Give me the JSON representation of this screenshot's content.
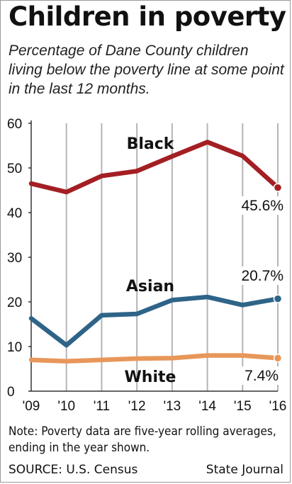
{
  "header": {
    "title": "Children in poverty",
    "subtitle": "Percentage of Dane County children living below the poverty line at some point in the last 12 months."
  },
  "footer": {
    "note": "Note: Poverty data are five-year rolling averages, ending in the year shown.",
    "source": "SOURCE: U.S. Census",
    "credit": "State Journal"
  },
  "colors": {
    "black_series": "#a31f24",
    "asian_series": "#2e6488",
    "white_series": "#e8975a",
    "gridline": "#b5b5b5",
    "axis": "#333333"
  },
  "chart_data": {
    "type": "line",
    "title": "Children in poverty",
    "xlabel": "",
    "ylabel": "",
    "ylim": [
      0,
      60
    ],
    "yticks": [
      0,
      10,
      20,
      30,
      40,
      50,
      60
    ],
    "categories": [
      "'09",
      "'10",
      "'11",
      "'12",
      "'13",
      "'14",
      "'15",
      "'16"
    ],
    "grid": "vertical",
    "legend": "inline labels",
    "series": [
      {
        "name": "Black",
        "color": "#a31f24",
        "values": [
          46.5,
          44.6,
          48.2,
          49.3,
          52.6,
          55.8,
          52.7,
          45.6
        ],
        "end_label": "45.6%"
      },
      {
        "name": "Asian",
        "color": "#2e6488",
        "values": [
          16.3,
          10.3,
          17.0,
          17.3,
          20.4,
          21.1,
          19.3,
          20.7
        ],
        "end_label": "20.7%"
      },
      {
        "name": "White",
        "color": "#e8975a",
        "values": [
          7.0,
          6.7,
          7.0,
          7.3,
          7.4,
          8.0,
          8.0,
          7.4
        ],
        "end_label": "7.4%"
      }
    ]
  }
}
